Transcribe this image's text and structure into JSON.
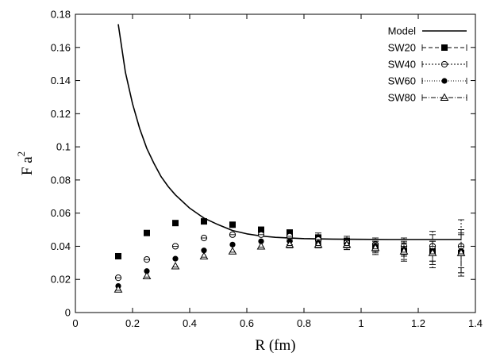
{
  "chart_data": {
    "type": "scatter",
    "xlabel": "R (fm)",
    "ylabel": "F a",
    "ylabel_sup": "2",
    "xlim": [
      0,
      1.4
    ],
    "ylim": [
      0,
      0.18
    ],
    "x_ticks": [
      0,
      0.2,
      0.4,
      0.6,
      0.8,
      1,
      1.2,
      1.4
    ],
    "y_ticks": [
      0,
      0.02,
      0.04,
      0.06,
      0.08,
      0.1,
      0.12,
      0.14,
      0.16,
      0.18
    ],
    "x_tick_labels": [
      "0",
      "0.2",
      "0.4",
      "0.6",
      "0.8",
      "1",
      "1.2",
      "1.4"
    ],
    "y_tick_labels": [
      "0",
      "0.02",
      "0.04",
      "0.06",
      "0.08",
      "0.1",
      "0.12",
      "0.14",
      "0.16",
      "0.18"
    ],
    "grid": false,
    "legend_position": "top-right",
    "model": {
      "name": "Model",
      "x": [
        0.15,
        0.175,
        0.2,
        0.225,
        0.25,
        0.275,
        0.3,
        0.325,
        0.35,
        0.4,
        0.45,
        0.5,
        0.55,
        0.6,
        0.65,
        0.7,
        0.8,
        0.9,
        1.0,
        1.1,
        1.2,
        1.3,
        1.35
      ],
      "y": [
        0.174,
        0.145,
        0.126,
        0.111,
        0.099,
        0.09,
        0.082,
        0.076,
        0.071,
        0.063,
        0.057,
        0.053,
        0.0495,
        0.0475,
        0.0462,
        0.0454,
        0.0446,
        0.0443,
        0.0442,
        0.0441,
        0.0441,
        0.0441,
        0.0441
      ]
    },
    "series": [
      {
        "name": "SW20",
        "marker": "filled-square",
        "dash": "5,3",
        "x": [
          0.15,
          0.25,
          0.35,
          0.45,
          0.55,
          0.65,
          0.75,
          0.85,
          0.95,
          1.05,
          1.15,
          1.25,
          1.35
        ],
        "y": [
          0.034,
          0.048,
          0.054,
          0.055,
          0.053,
          0.05,
          0.048,
          0.045,
          0.043,
          0.039,
          0.037,
          0.037,
          0.036
        ],
        "err": [
          0,
          0,
          0,
          0,
          0,
          0,
          0.002,
          0.003,
          0.003,
          0.004,
          0.006,
          0.01,
          0.014
        ]
      },
      {
        "name": "SW40",
        "marker": "open-circle",
        "dash": "2,2",
        "x": [
          0.15,
          0.25,
          0.35,
          0.45,
          0.55,
          0.65,
          0.75,
          0.85,
          0.95,
          1.05,
          1.15,
          1.25,
          1.35
        ],
        "y": [
          0.021,
          0.032,
          0.04,
          0.045,
          0.047,
          0.047,
          0.046,
          0.044,
          0.042,
          0.041,
          0.04,
          0.04,
          0.04
        ],
        "err": [
          0,
          0,
          0,
          0,
          0,
          0,
          0.002,
          0.003,
          0.003,
          0.004,
          0.005,
          0.009,
          0.016
        ]
      },
      {
        "name": "SW60",
        "marker": "filled-circle",
        "dash": "1,2",
        "x": [
          0.15,
          0.25,
          0.35,
          0.45,
          0.55,
          0.65,
          0.75,
          0.85,
          0.95,
          1.05,
          1.15,
          1.25,
          1.35
        ],
        "y": [
          0.016,
          0.025,
          0.0325,
          0.0375,
          0.041,
          0.043,
          0.043,
          0.042,
          0.041,
          0.04,
          0.038,
          0.037,
          0.037
        ],
        "err": [
          0,
          0,
          0,
          0,
          0,
          0,
          0.002,
          0.002,
          0.003,
          0.003,
          0.004,
          0.006,
          0.01
        ]
      },
      {
        "name": "SW80",
        "marker": "open-triangle",
        "dash": "6,2,1,2",
        "x": [
          0.15,
          0.25,
          0.35,
          0.45,
          0.55,
          0.65,
          0.75,
          0.85,
          0.95,
          1.05,
          1.15,
          1.25,
          1.35
        ],
        "y": [
          0.014,
          0.022,
          0.028,
          0.034,
          0.037,
          0.04,
          0.041,
          0.041,
          0.041,
          0.039,
          0.037,
          0.036,
          0.036
        ],
        "err": [
          0,
          0,
          0,
          0,
          0,
          0,
          0.002,
          0.002,
          0.003,
          0.003,
          0.005,
          0.007,
          0.012
        ]
      }
    ]
  }
}
